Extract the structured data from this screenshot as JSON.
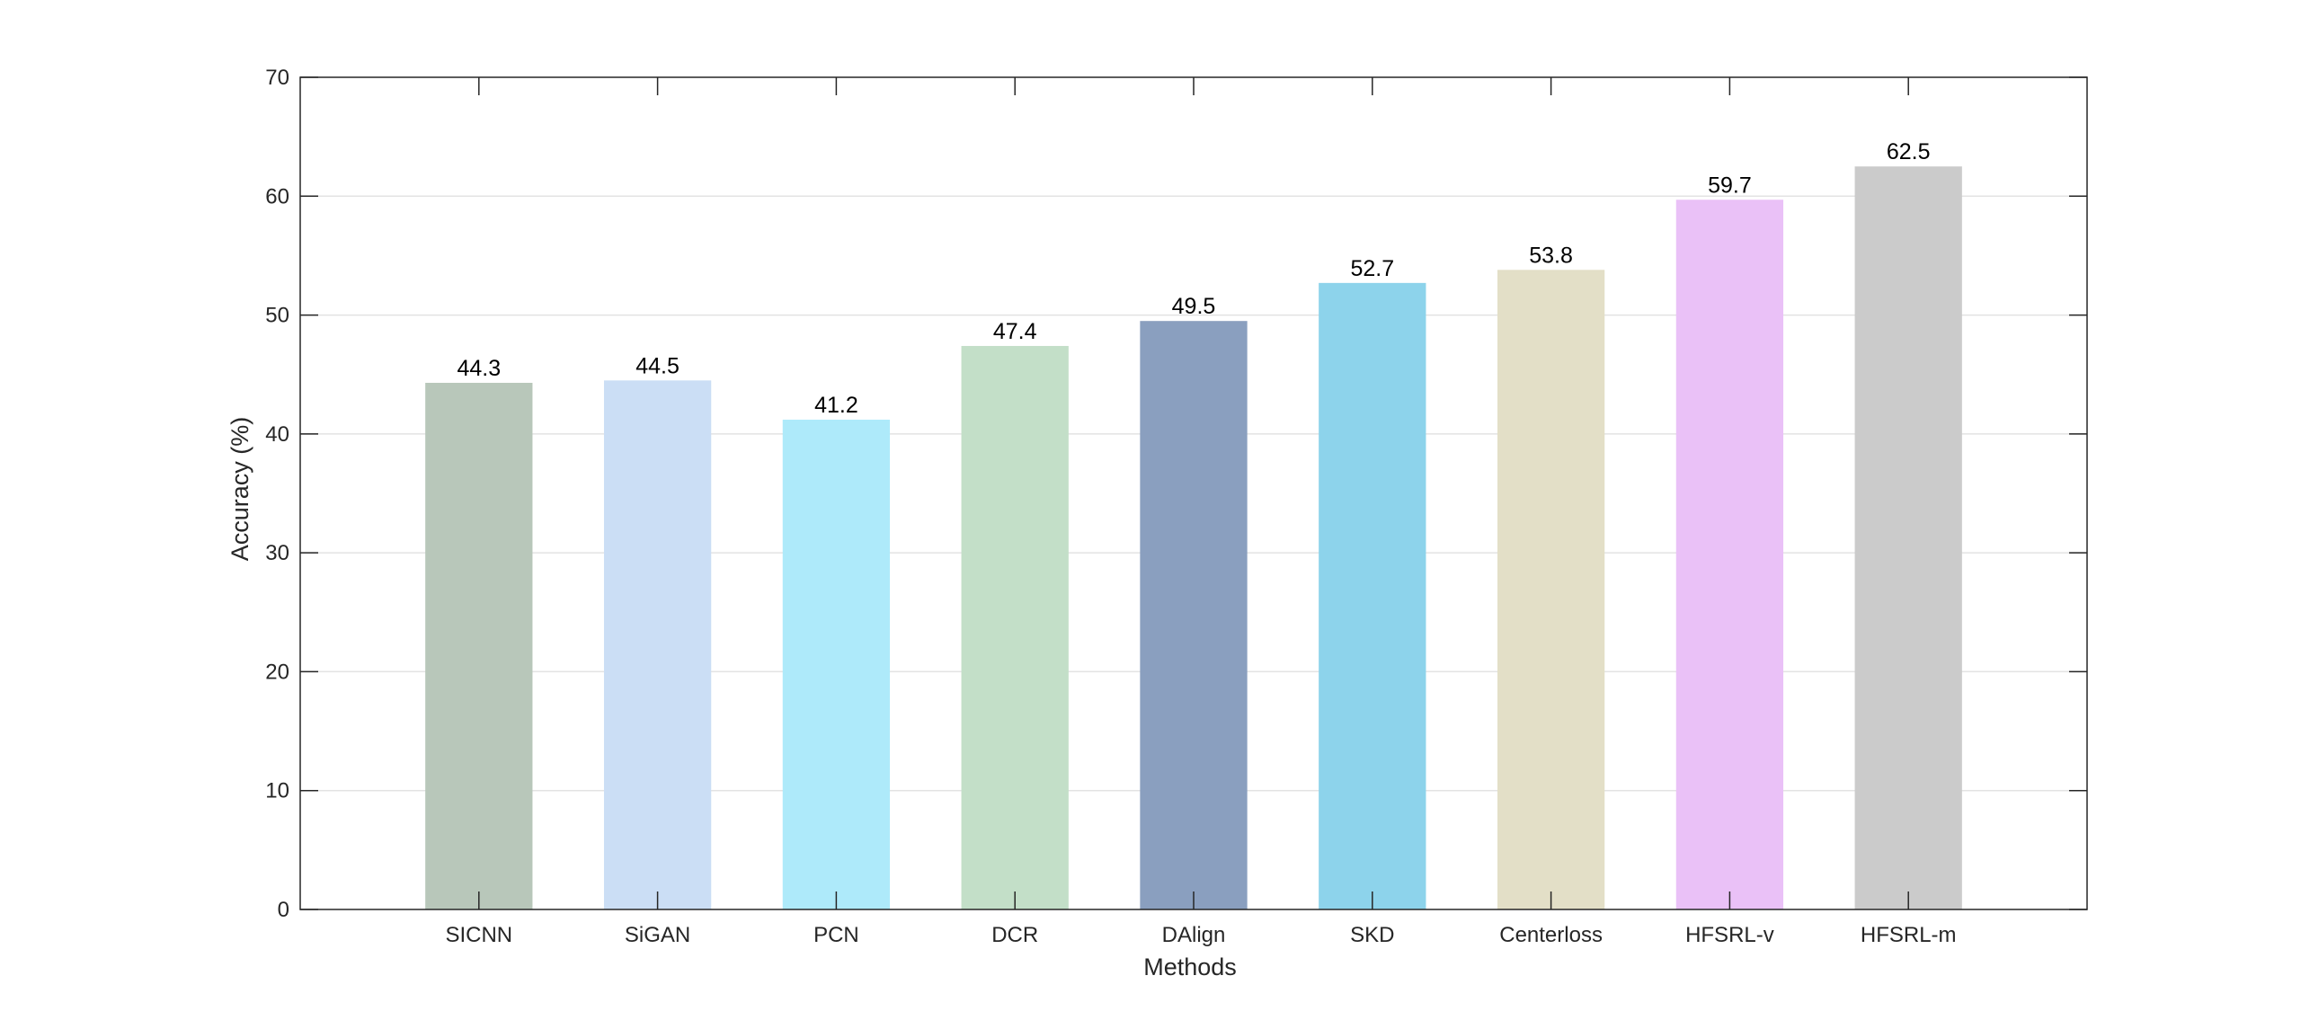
{
  "chart_data": {
    "type": "bar",
    "categories": [
      "SICNN",
      "SiGAN",
      "PCN",
      "DCR",
      "DAlign",
      "SKD",
      "Centerloss",
      "HFSRL-v",
      "HFSRL-m"
    ],
    "values": [
      44.3,
      44.5,
      41.2,
      47.4,
      49.5,
      52.7,
      53.8,
      59.7,
      62.5
    ],
    "colors": [
      "#b8c7ba",
      "#cbdef5",
      "#aeeafa",
      "#c3dfc8",
      "#8a9fbf",
      "#8dd3eb",
      "#e3dfc7",
      "#eac1f7",
      "#cbcbcb"
    ],
    "xlabel": "Methods",
    "ylabel": "Accuracy (%)",
    "ylim": [
      0,
      70
    ],
    "yticks": [
      0,
      10,
      20,
      30,
      40,
      50,
      60,
      70
    ],
    "grid": "horizontal",
    "data_labels": [
      "44.3",
      "44.5",
      "41.2",
      "47.4",
      "49.5",
      "52.7",
      "53.8",
      "59.7",
      "62.5"
    ]
  }
}
